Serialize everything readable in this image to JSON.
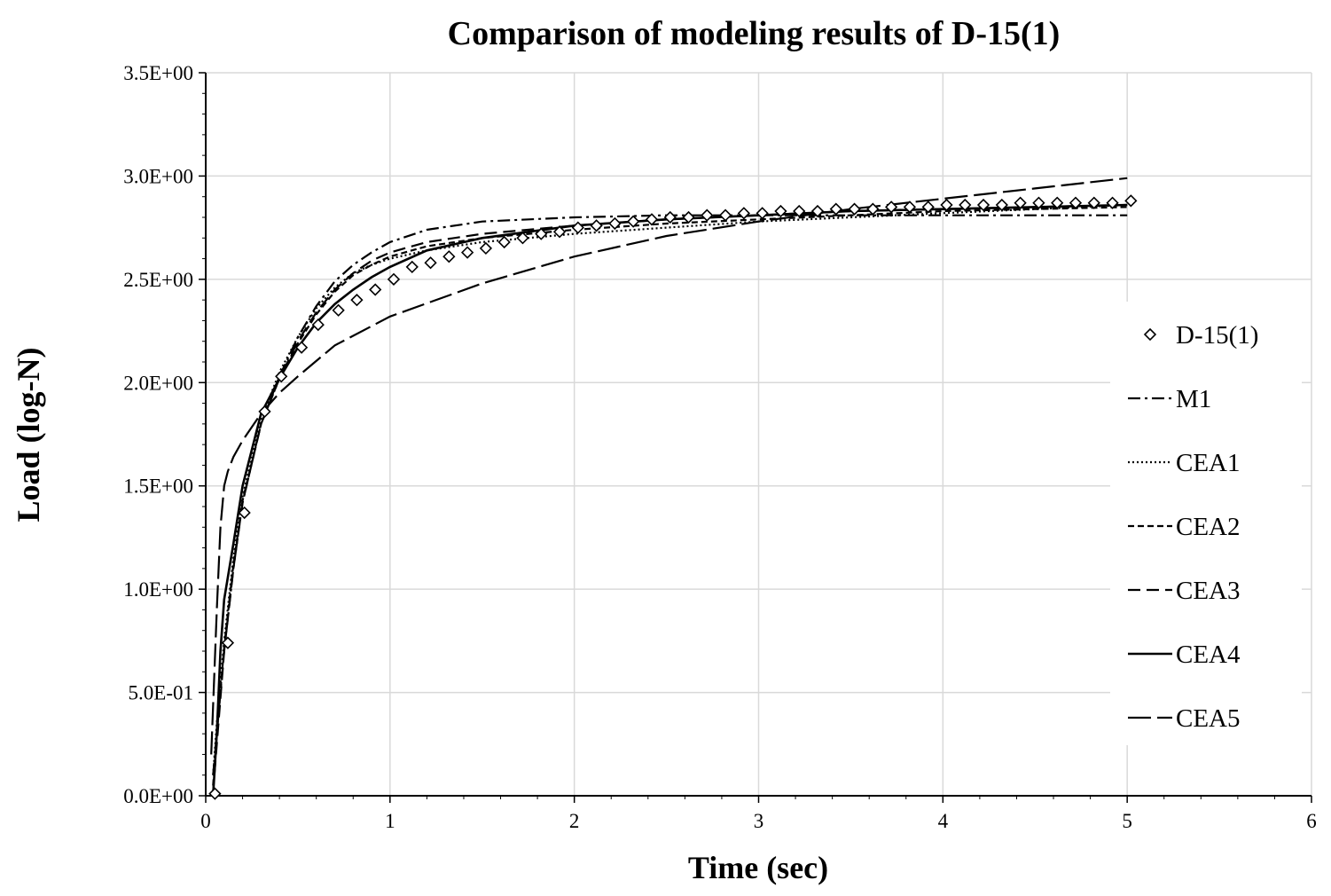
{
  "chart_data": {
    "type": "scatter",
    "title": "Comparison of modeling results of D-15(1)",
    "xlabel": "Time (sec)",
    "ylabel": "Load (log-N)",
    "xlim": [
      0,
      6
    ],
    "ylim": [
      0,
      3.5
    ],
    "x_ticks": [
      0,
      1,
      2,
      3,
      4,
      5,
      6
    ],
    "x_tick_labels": [
      "0",
      "1",
      "2",
      "3",
      "4",
      "5",
      "6"
    ],
    "y_ticks": [
      0,
      0.5,
      1.0,
      1.5,
      2.0,
      2.5,
      3.0,
      3.5
    ],
    "y_tick_labels": [
      "0.0E+00",
      "5.0E-01",
      "1.0E+00",
      "1.5E+00",
      "2.0E+00",
      "2.5E+00",
      "3.0E+00",
      "3.5E+00"
    ],
    "grid": true,
    "legend_position": "right",
    "series": [
      {
        "name": "D-15(1)",
        "style": "markers",
        "marker": "diamond-open",
        "x": [
          0.05,
          0.12,
          0.21,
          0.32,
          0.41,
          0.52,
          0.61,
          0.72,
          0.82,
          0.92,
          1.02,
          1.12,
          1.22,
          1.32,
          1.42,
          1.52,
          1.62,
          1.72,
          1.82,
          1.92,
          2.02,
          2.12,
          2.22,
          2.32,
          2.42,
          2.52,
          2.62,
          2.72,
          2.82,
          2.92,
          3.02,
          3.12,
          3.22,
          3.32,
          3.42,
          3.52,
          3.62,
          3.72,
          3.82,
          3.92,
          4.02,
          4.12,
          4.22,
          4.32,
          4.42,
          4.52,
          4.62,
          4.72,
          4.82,
          4.92,
          5.02
        ],
        "y": [
          0.01,
          0.74,
          1.37,
          1.86,
          2.03,
          2.17,
          2.28,
          2.35,
          2.4,
          2.45,
          2.5,
          2.56,
          2.58,
          2.61,
          2.63,
          2.65,
          2.68,
          2.7,
          2.72,
          2.73,
          2.75,
          2.76,
          2.77,
          2.78,
          2.79,
          2.8,
          2.8,
          2.81,
          2.81,
          2.82,
          2.82,
          2.83,
          2.83,
          2.83,
          2.84,
          2.84,
          2.84,
          2.85,
          2.85,
          2.85,
          2.86,
          2.86,
          2.86,
          2.86,
          2.87,
          2.87,
          2.87,
          2.87,
          2.87,
          2.87,
          2.88
        ]
      },
      {
        "name": "M1",
        "style": "dash-dot",
        "x": [
          0.04,
          0.06,
          0.1,
          0.15,
          0.2,
          0.3,
          0.4,
          0.5,
          0.6,
          0.7,
          0.8,
          0.9,
          1.0,
          1.2,
          1.5,
          2.0,
          2.5,
          3.0,
          4.0,
          5.0
        ],
        "y": [
          0.1,
          0.3,
          0.7,
          1.1,
          1.42,
          1.8,
          2.03,
          2.22,
          2.37,
          2.49,
          2.57,
          2.63,
          2.68,
          2.74,
          2.78,
          2.8,
          2.81,
          2.81,
          2.81,
          2.81
        ]
      },
      {
        "name": "CEA1",
        "style": "dotted",
        "x": [
          0.04,
          0.06,
          0.1,
          0.15,
          0.2,
          0.3,
          0.4,
          0.5,
          0.6,
          0.7,
          0.8,
          0.9,
          1.0,
          1.2,
          1.5,
          2.0,
          2.5,
          3.0,
          3.5,
          4.0,
          4.5,
          5.0
        ],
        "y": [
          0.1,
          0.35,
          0.75,
          1.15,
          1.45,
          1.82,
          2.05,
          2.22,
          2.36,
          2.46,
          2.53,
          2.57,
          2.6,
          2.64,
          2.68,
          2.72,
          2.75,
          2.78,
          2.8,
          2.82,
          2.84,
          2.86
        ]
      },
      {
        "name": "CEA2",
        "style": "short-dash",
        "x": [
          0.04,
          0.06,
          0.1,
          0.15,
          0.2,
          0.3,
          0.4,
          0.5,
          0.6,
          0.7,
          0.8,
          0.9,
          1.0,
          1.2,
          1.5,
          2.0,
          2.5,
          3.0,
          3.5,
          4.0,
          4.5,
          5.0
        ],
        "y": [
          0.05,
          0.3,
          0.72,
          1.12,
          1.43,
          1.8,
          2.02,
          2.19,
          2.33,
          2.44,
          2.52,
          2.57,
          2.61,
          2.66,
          2.7,
          2.74,
          2.77,
          2.79,
          2.81,
          2.83,
          2.84,
          2.85
        ]
      },
      {
        "name": "CEA3",
        "style": "medium-dash",
        "x": [
          0.04,
          0.06,
          0.1,
          0.15,
          0.2,
          0.3,
          0.4,
          0.5,
          0.6,
          0.7,
          0.8,
          0.9,
          1.0,
          1.2,
          1.5,
          2.0,
          2.5,
          3.0,
          3.5,
          4.0,
          4.5,
          5.0
        ],
        "y": [
          0.02,
          0.25,
          0.7,
          1.1,
          1.42,
          1.8,
          2.02,
          2.2,
          2.34,
          2.45,
          2.53,
          2.59,
          2.63,
          2.68,
          2.72,
          2.76,
          2.79,
          2.81,
          2.83,
          2.84,
          2.85,
          2.86
        ]
      },
      {
        "name": "CEA4",
        "style": "solid",
        "x": [
          0.04,
          0.06,
          0.08,
          0.1,
          0.15,
          0.2,
          0.3,
          0.4,
          0.5,
          0.6,
          0.7,
          0.8,
          0.9,
          1.0,
          1.2,
          1.5,
          2.0,
          2.5,
          3.0,
          3.5,
          4.0,
          4.5,
          5.0
        ],
        "y": [
          0.0,
          0.3,
          0.7,
          0.95,
          1.22,
          1.5,
          1.85,
          2.02,
          2.17,
          2.29,
          2.38,
          2.45,
          2.51,
          2.56,
          2.64,
          2.7,
          2.76,
          2.79,
          2.81,
          2.83,
          2.84,
          2.85,
          2.86
        ]
      },
      {
        "name": "CEA5",
        "style": "long-dash",
        "x": [
          0.03,
          0.06,
          0.08,
          0.1,
          0.12,
          0.15,
          0.2,
          0.3,
          0.4,
          0.5,
          0.7,
          1.0,
          1.5,
          2.0,
          2.5,
          3.0,
          3.5,
          4.0,
          4.5,
          5.0
        ],
        "y": [
          0.2,
          0.9,
          1.3,
          1.5,
          1.57,
          1.64,
          1.72,
          1.85,
          1.95,
          2.03,
          2.18,
          2.32,
          2.48,
          2.61,
          2.71,
          2.78,
          2.84,
          2.89,
          2.94,
          2.99
        ]
      }
    ]
  }
}
